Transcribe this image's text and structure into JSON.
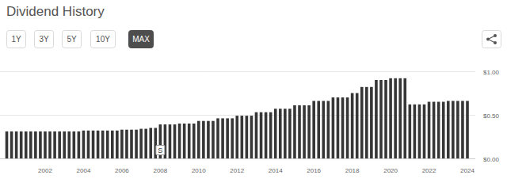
{
  "controls": {
    "buttons": [
      "1Y",
      "3Y",
      "5Y",
      "10Y",
      "MAX"
    ],
    "active": "MAX"
  },
  "chart_data": {
    "type": "bar",
    "title": "Dividend History",
    "color": "#363636",
    "grid": true,
    "categories": [
      null,
      null,
      null,
      null,
      null,
      null,
      null,
      null,
      "2002",
      null,
      null,
      null,
      null,
      null,
      null,
      null,
      "2004",
      null,
      null,
      null,
      null,
      null,
      null,
      null,
      "2006",
      null,
      null,
      null,
      null,
      null,
      null,
      null,
      "2008",
      null,
      null,
      null,
      null,
      null,
      null,
      null,
      "2010",
      null,
      null,
      null,
      null,
      null,
      null,
      null,
      "2012",
      null,
      null,
      null,
      null,
      null,
      null,
      null,
      "2014",
      null,
      null,
      null,
      null,
      null,
      null,
      null,
      "2016",
      null,
      null,
      null,
      null,
      null,
      null,
      null,
      "2018",
      null,
      null,
      null,
      null,
      null,
      null,
      null,
      "2020",
      null,
      null,
      null,
      null,
      null,
      null,
      null,
      "2022",
      null,
      null,
      null,
      null,
      null,
      null,
      null,
      "2024"
    ],
    "values": [
      0.31,
      0.31,
      0.31,
      0.31,
      0.31,
      0.31,
      0.31,
      0.31,
      0.31,
      0.31,
      0.31,
      0.31,
      0.31,
      0.31,
      0.31,
      0.31,
      0.32,
      0.32,
      0.32,
      0.32,
      0.32,
      0.32,
      0.32,
      0.32,
      0.33,
      0.33,
      0.33,
      0.33,
      0.34,
      0.34,
      0.35,
      0.35,
      0.39,
      0.39,
      0.39,
      0.39,
      0.4,
      0.4,
      0.4,
      0.4,
      0.43,
      0.43,
      0.43,
      0.43,
      0.46,
      0.46,
      0.46,
      0.46,
      0.49,
      0.49,
      0.49,
      0.49,
      0.53,
      0.53,
      0.53,
      0.53,
      0.57,
      0.57,
      0.57,
      0.57,
      0.61,
      0.61,
      0.61,
      0.61,
      0.66,
      0.66,
      0.66,
      0.66,
      0.7,
      0.7,
      0.7,
      0.7,
      0.75,
      0.75,
      0.82,
      0.82,
      0.82,
      0.9,
      0.9,
      0.9,
      0.92,
      0.92,
      0.92,
      0.92,
      0.62,
      0.62,
      0.62,
      0.62,
      0.65,
      0.65,
      0.65,
      0.65,
      0.66,
      0.66,
      0.66,
      0.66,
      0.66
    ],
    "ylim": [
      0,
      1
    ],
    "yticks": [
      {
        "value": 0,
        "label": "$0.00"
      },
      {
        "value": 0.5,
        "label": "$0.50"
      },
      {
        "value": 1,
        "label": "$1.00"
      }
    ],
    "annotations": [
      {
        "label": "S",
        "category": "2008"
      }
    ]
  }
}
